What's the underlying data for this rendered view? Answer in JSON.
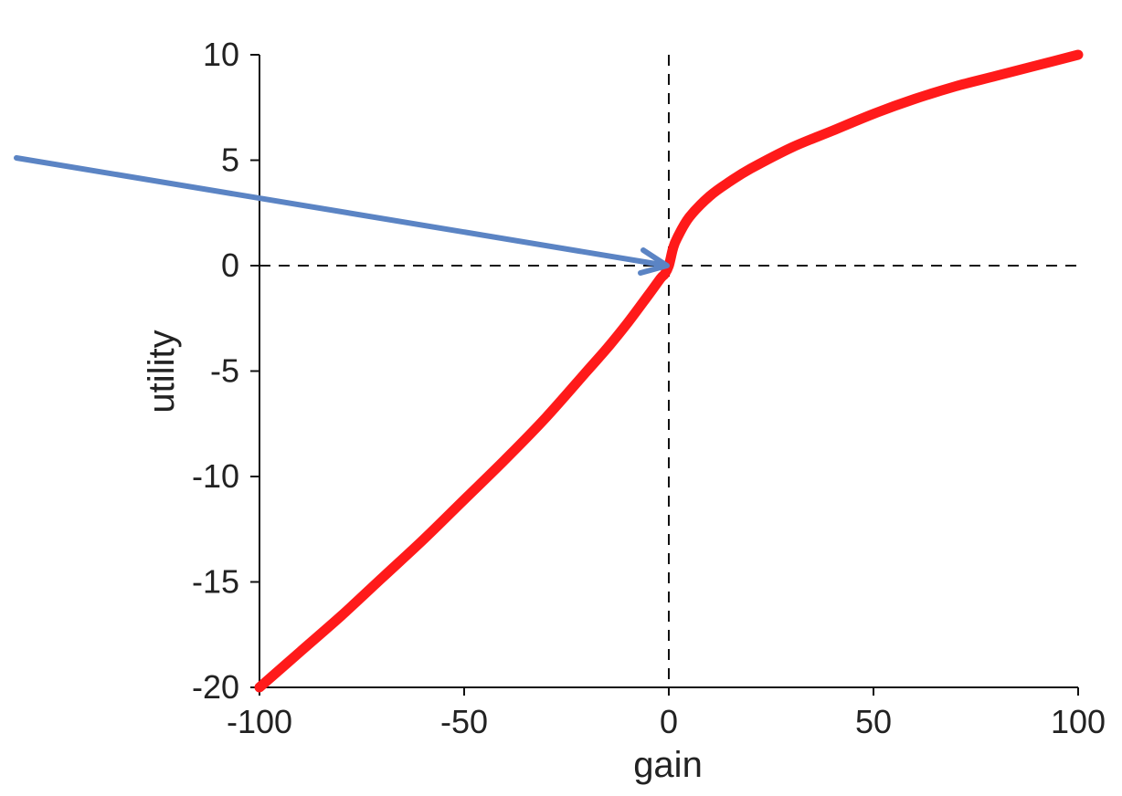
{
  "chart_data": {
    "type": "line",
    "title": "",
    "xlabel": "gain",
    "ylabel": "utility",
    "xlim": [
      -100,
      100
    ],
    "ylim": [
      -20,
      10
    ],
    "xticks": [
      -100,
      -50,
      0,
      50,
      100
    ],
    "yticks": [
      10,
      5,
      0,
      -5,
      -10,
      -15,
      -20
    ],
    "xtick_labels": [
      "-100",
      "-50",
      "0",
      "50",
      "100"
    ],
    "ytick_labels": [
      "10",
      "5",
      "0",
      "-5",
      "-10",
      "-15",
      "-20"
    ],
    "grid": false,
    "reference_lines": [
      {
        "orientation": "horizontal",
        "value": 0,
        "style": "dashed"
      },
      {
        "orientation": "vertical",
        "value": 0,
        "style": "dashed"
      }
    ],
    "series": [
      {
        "color": "#ff1a1a",
        "x": [
          -100,
          -90,
          -80,
          -70,
          -60,
          -50,
          -40,
          -30,
          -20,
          -15,
          -10,
          -5,
          -2,
          -1,
          0,
          1,
          2,
          5,
          10,
          15,
          20,
          30,
          40,
          50,
          60,
          70,
          80,
          90,
          100
        ],
        "y": [
          -20,
          -18.3,
          -16.6,
          -14.8,
          -13.0,
          -11.1,
          -9.2,
          -7.2,
          -5.0,
          -3.9,
          -2.7,
          -1.4,
          -0.6,
          -0.4,
          0,
          0.8,
          1.3,
          2.3,
          3.3,
          4.0,
          4.6,
          5.6,
          6.4,
          7.2,
          7.9,
          8.5,
          9.0,
          9.5,
          10.0
        ]
      }
    ],
    "annotations": [
      {
        "type": "arrow",
        "color": "#5b84c4",
        "points_to": {
          "x": 0,
          "y": 0
        }
      }
    ]
  }
}
